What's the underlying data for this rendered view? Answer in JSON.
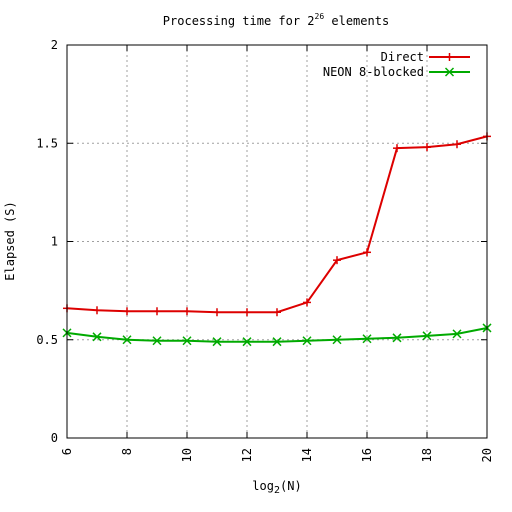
{
  "chart_data": {
    "type": "line",
    "title": {
      "prefix": "Processing time for 2",
      "exponent": "26",
      "suffix": " elements"
    },
    "xlabel": {
      "prefix": "log",
      "subscript": "2",
      "suffix": "(N)"
    },
    "ylabel": "Elapsed (S)",
    "xlim": [
      6,
      20
    ],
    "ylim": [
      0,
      2
    ],
    "x_ticks": [
      6,
      8,
      10,
      12,
      14,
      16,
      18,
      20
    ],
    "x_tick_labels": [
      "6",
      "8",
      "10",
      "12",
      "14",
      "16",
      "18",
      "20"
    ],
    "y_ticks": [
      0,
      0.5,
      1,
      1.5,
      2
    ],
    "y_tick_labels": [
      "0",
      "0.5",
      "1",
      "1.5",
      "2"
    ],
    "grid": true,
    "legend_position": "top-right",
    "x": [
      6,
      7,
      8,
      9,
      10,
      11,
      12,
      13,
      14,
      15,
      16,
      17,
      18,
      19,
      20
    ],
    "series": [
      {
        "name": "Direct",
        "marker": "plus",
        "color": "#dd0000",
        "values": [
          0.66,
          0.65,
          0.645,
          0.645,
          0.645,
          0.64,
          0.64,
          0.64,
          0.69,
          0.905,
          0.945,
          1.475,
          1.48,
          1.495,
          1.535
        ]
      },
      {
        "name": "NEON 8-blocked",
        "marker": "cross",
        "color": "#00aa00",
        "values": [
          0.535,
          0.515,
          0.5,
          0.495,
          0.495,
          0.49,
          0.49,
          0.49,
          0.495,
          0.5,
          0.505,
          0.51,
          0.52,
          0.53,
          0.56
        ]
      }
    ]
  }
}
